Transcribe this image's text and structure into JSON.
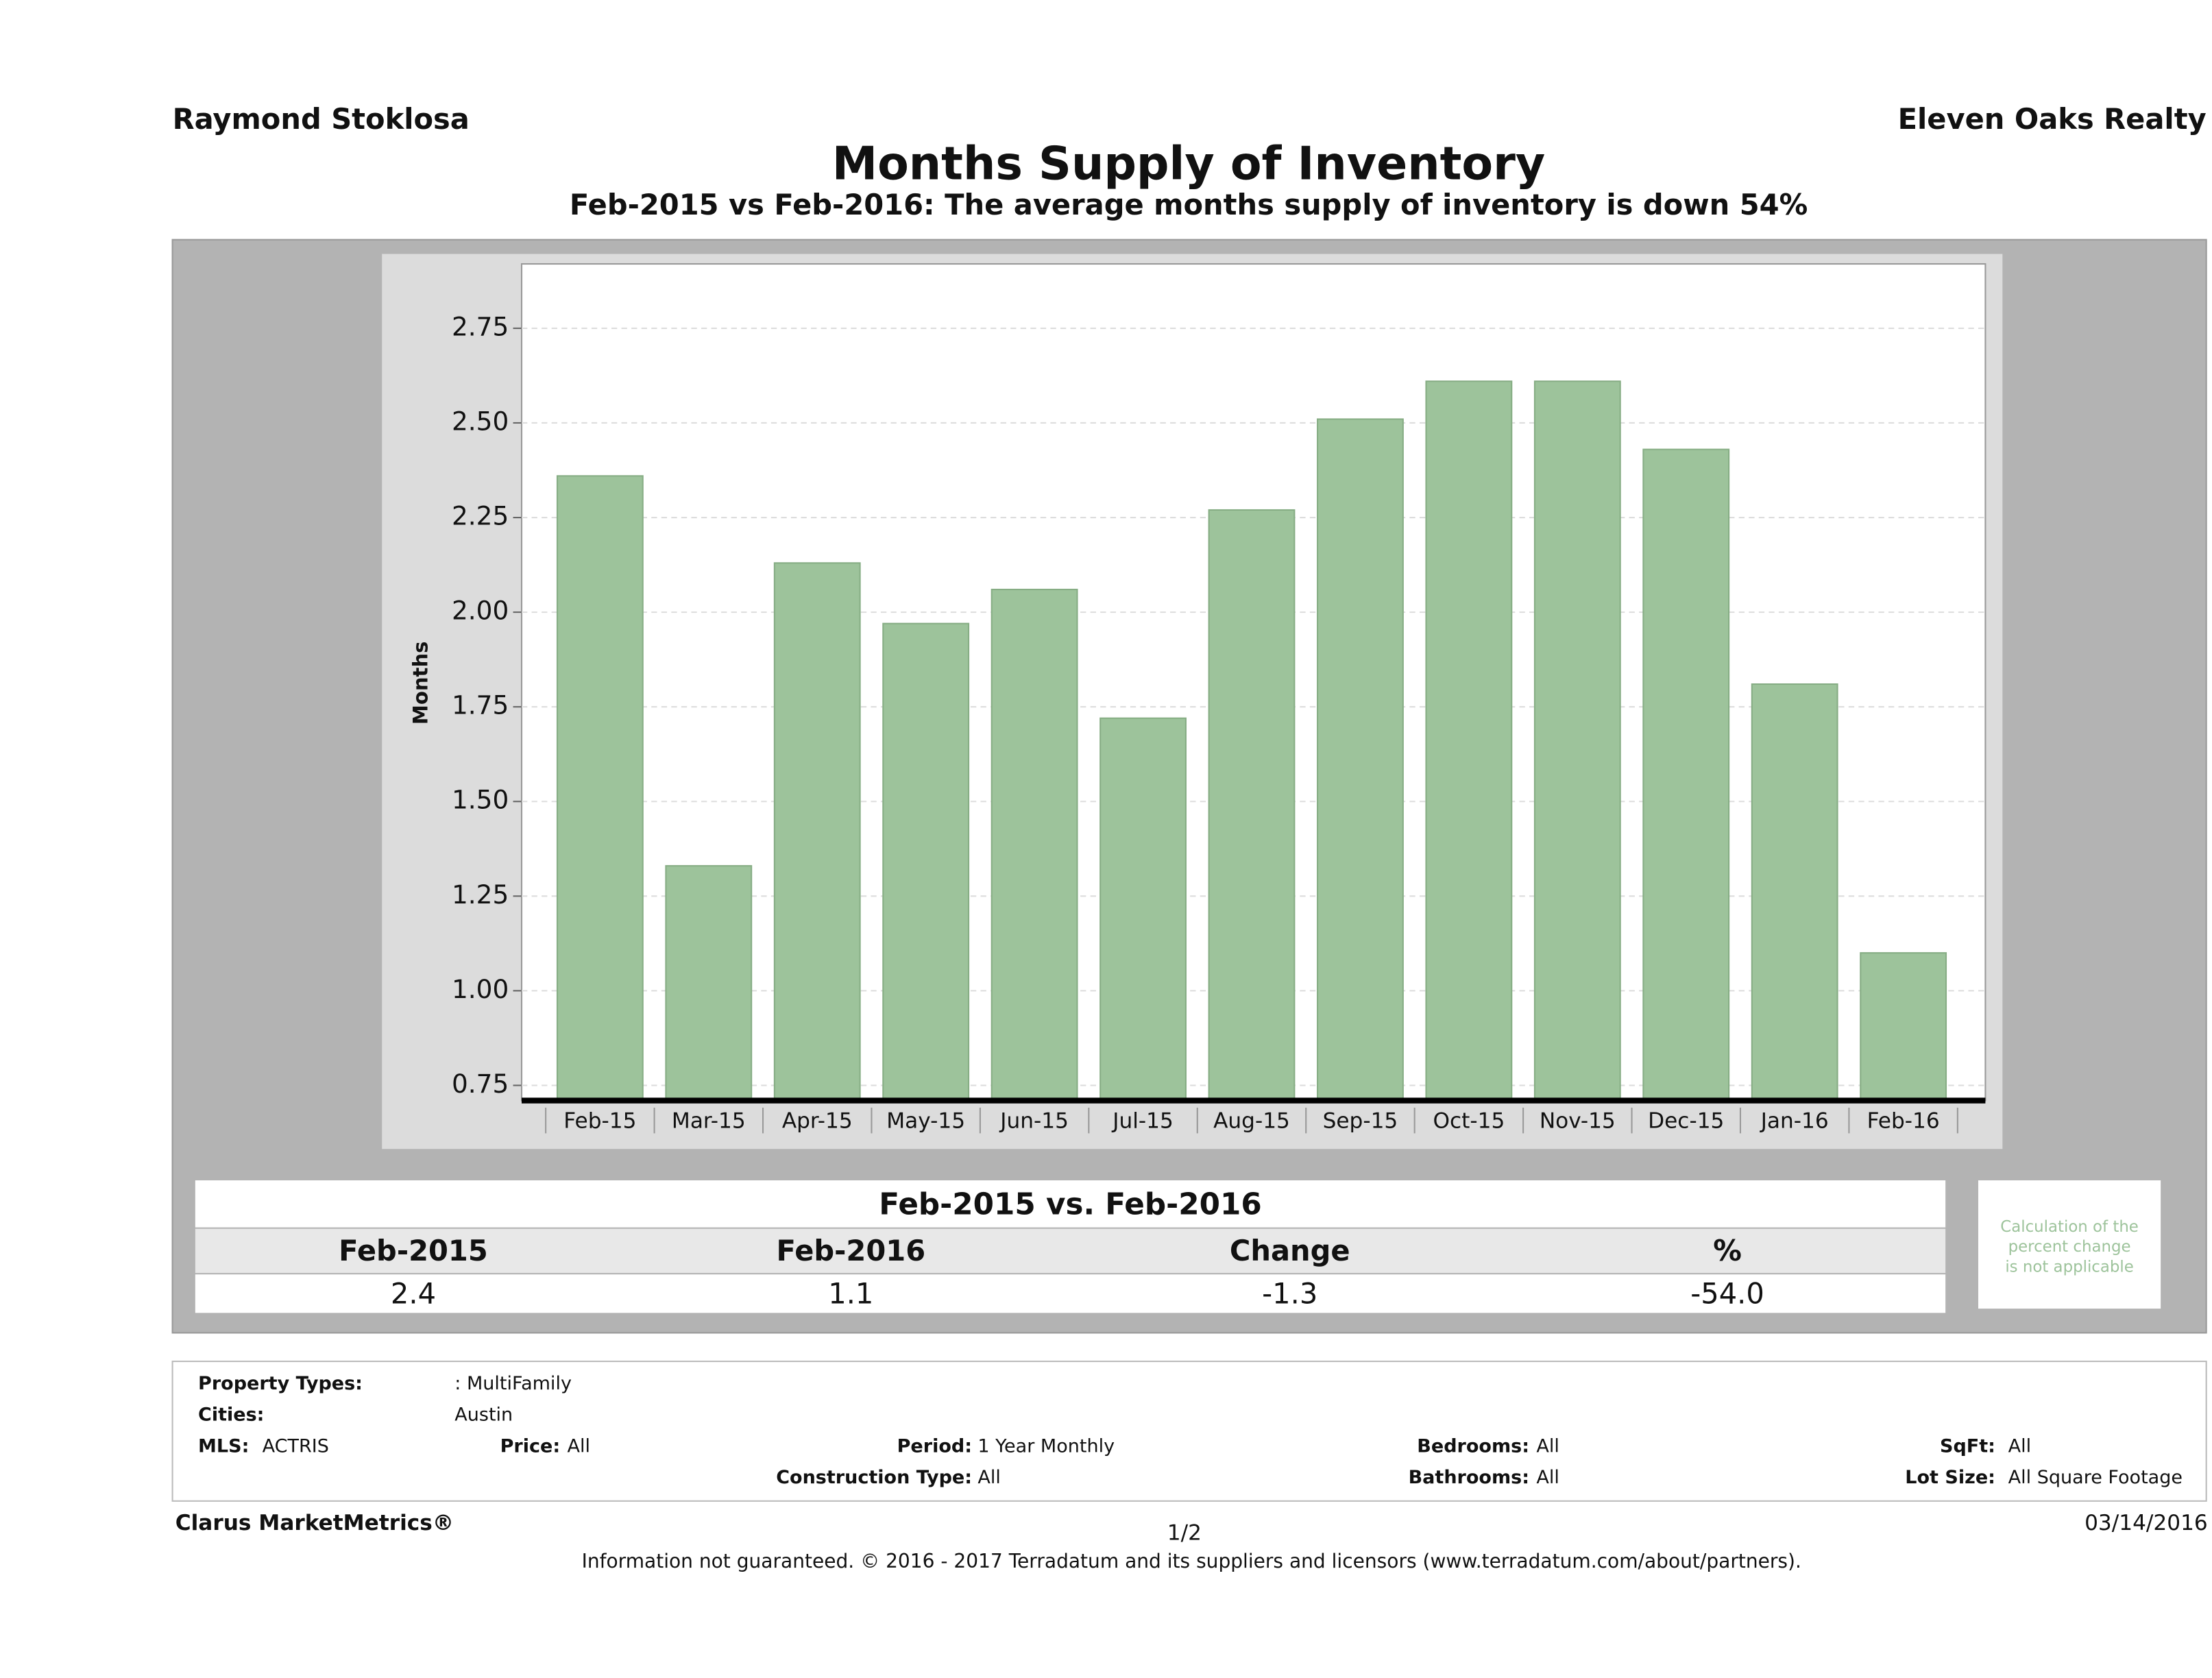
{
  "header": {
    "left": "Raymond Stoklosa",
    "right": "Eleven Oaks Realty"
  },
  "chart_data": {
    "type": "bar",
    "title": "Months Supply of Inventory",
    "subtitle": "Feb-2015 vs Feb-2016: The average months supply of inventory is down 54%",
    "y_label": "Months",
    "categories": [
      "Feb-15",
      "Mar-15",
      "Apr-15",
      "May-15",
      "Jun-15",
      "Jul-15",
      "Aug-15",
      "Sep-15",
      "Oct-15",
      "Nov-15",
      "Dec-15",
      "Jan-16",
      "Feb-16"
    ],
    "values": [
      2.36,
      1.33,
      2.13,
      1.97,
      2.06,
      1.72,
      2.27,
      2.51,
      2.61,
      2.61,
      2.43,
      1.81,
      1.1
    ],
    "color": "#9dc39b",
    "ylim": [
      0.71,
      2.92
    ],
    "yticks": [
      0.75,
      {
        "value": 1,
        "label": "1.00"
      },
      1.25,
      {
        "value": 1.5,
        "label": "1.50"
      },
      1.75,
      {
        "value": 2,
        "label": "2.00"
      },
      2.25,
      {
        "value": 2.5,
        "label": "2.50"
      },
      2.75
    ],
    "grid": true
  },
  "table": {
    "title": "Feb-2015 vs. Feb-2016",
    "headers": [
      "Feb-2015",
      "Feb-2016",
      "Change",
      "%"
    ],
    "values": [
      "2.4",
      "1.1",
      "-1.3",
      "-54.0"
    ],
    "note": [
      "Calculation of the",
      "percent change",
      "is not applicable"
    ]
  },
  "footer": {
    "property_types": {
      "label": "Property Types:",
      "value": ": MultiFamily"
    },
    "cities": {
      "label": "Cities:",
      "value": "Austin"
    },
    "mls": {
      "label": "MLS:",
      "value": "ACTRIS"
    },
    "price": {
      "label": "Price:",
      "value": "All"
    },
    "period": {
      "label": "Period:",
      "value": "1 Year Monthly"
    },
    "bedrooms": {
      "label": "Bedrooms:",
      "value": "All"
    },
    "sqft": {
      "label": "SqFt:",
      "value": "All"
    },
    "construction": {
      "label": "Construction Type:",
      "value": "All"
    },
    "bathrooms": {
      "label": "Bathrooms:",
      "value": "All"
    },
    "lot_size": {
      "label": "Lot Size:",
      "value": "All Square Footage"
    },
    "brand": "Clarus MarketMetrics®",
    "page": "1/2",
    "date": "03/14/2016",
    "disclaimer": "Information not guaranteed. © 2016 - 2017 Terradatum and its suppliers and licensors (www.terradatum.com/about/partners)."
  }
}
